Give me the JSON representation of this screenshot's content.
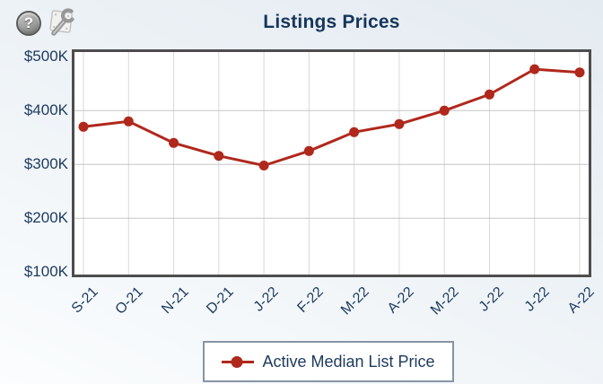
{
  "icons": {
    "help_glyph": "?"
  },
  "chart_data": {
    "type": "line",
    "title": "Listings Prices",
    "categories": [
      "S-21",
      "O-21",
      "N-21",
      "D-21",
      "J-22",
      "F-22",
      "M-22",
      "A-22",
      "M-22",
      "J-22",
      "J-22",
      "A-22"
    ],
    "series": [
      {
        "name": "Active Median List Price",
        "values": [
          370000,
          380000,
          340000,
          316000,
          298000,
          325000,
          360000,
          375000,
          400000,
          430000,
          477000,
          471000
        ]
      }
    ],
    "y_tick_labels": [
      "$500K",
      "$400K",
      "$300K",
      "$200K",
      "$100K"
    ],
    "y_tick_values": [
      500000,
      400000,
      300000,
      200000,
      100000
    ],
    "ylim": [
      100000,
      500000
    ],
    "grid": true,
    "legend_position": "bottom",
    "colors": {
      "series": "#b0281c",
      "axis_text": "#1b3a5f",
      "title_text": "#16365c",
      "plot_border": "#4d4d4d",
      "grid_horizontal": "#c6c6c6",
      "grid_vertical": "#d8d8d8",
      "legend_border": "#8795a6",
      "plot_background": "#ffffff"
    }
  }
}
